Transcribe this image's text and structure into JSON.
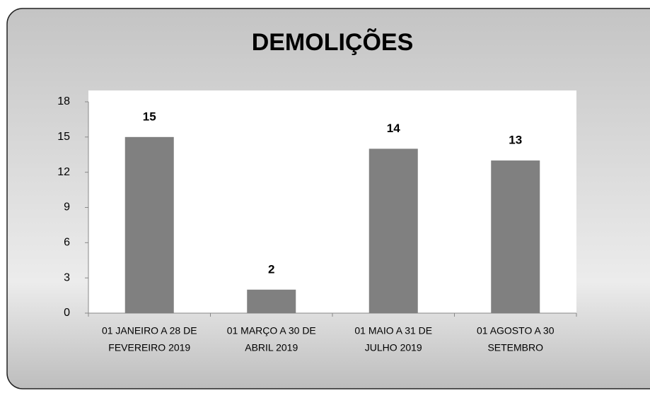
{
  "chart_data": {
    "type": "bar",
    "title": "DEMOLIÇÕES",
    "categories": [
      [
        "01 JANEIRO A 28 DE",
        "FEVEREIRO 2019"
      ],
      [
        "01 MARÇO A 30 DE",
        "ABRIL 2019"
      ],
      [
        "01 MAIO A 31 DE",
        "JULHO 2019"
      ],
      [
        "01 AGOSTO A 30",
        "SETEMBRO"
      ]
    ],
    "values": [
      15,
      2,
      14,
      13
    ],
    "color": "#808080",
    "ylim": [
      0,
      18
    ],
    "yticks": [
      0,
      3,
      6,
      9,
      12,
      15,
      18
    ],
    "grid": false
  }
}
